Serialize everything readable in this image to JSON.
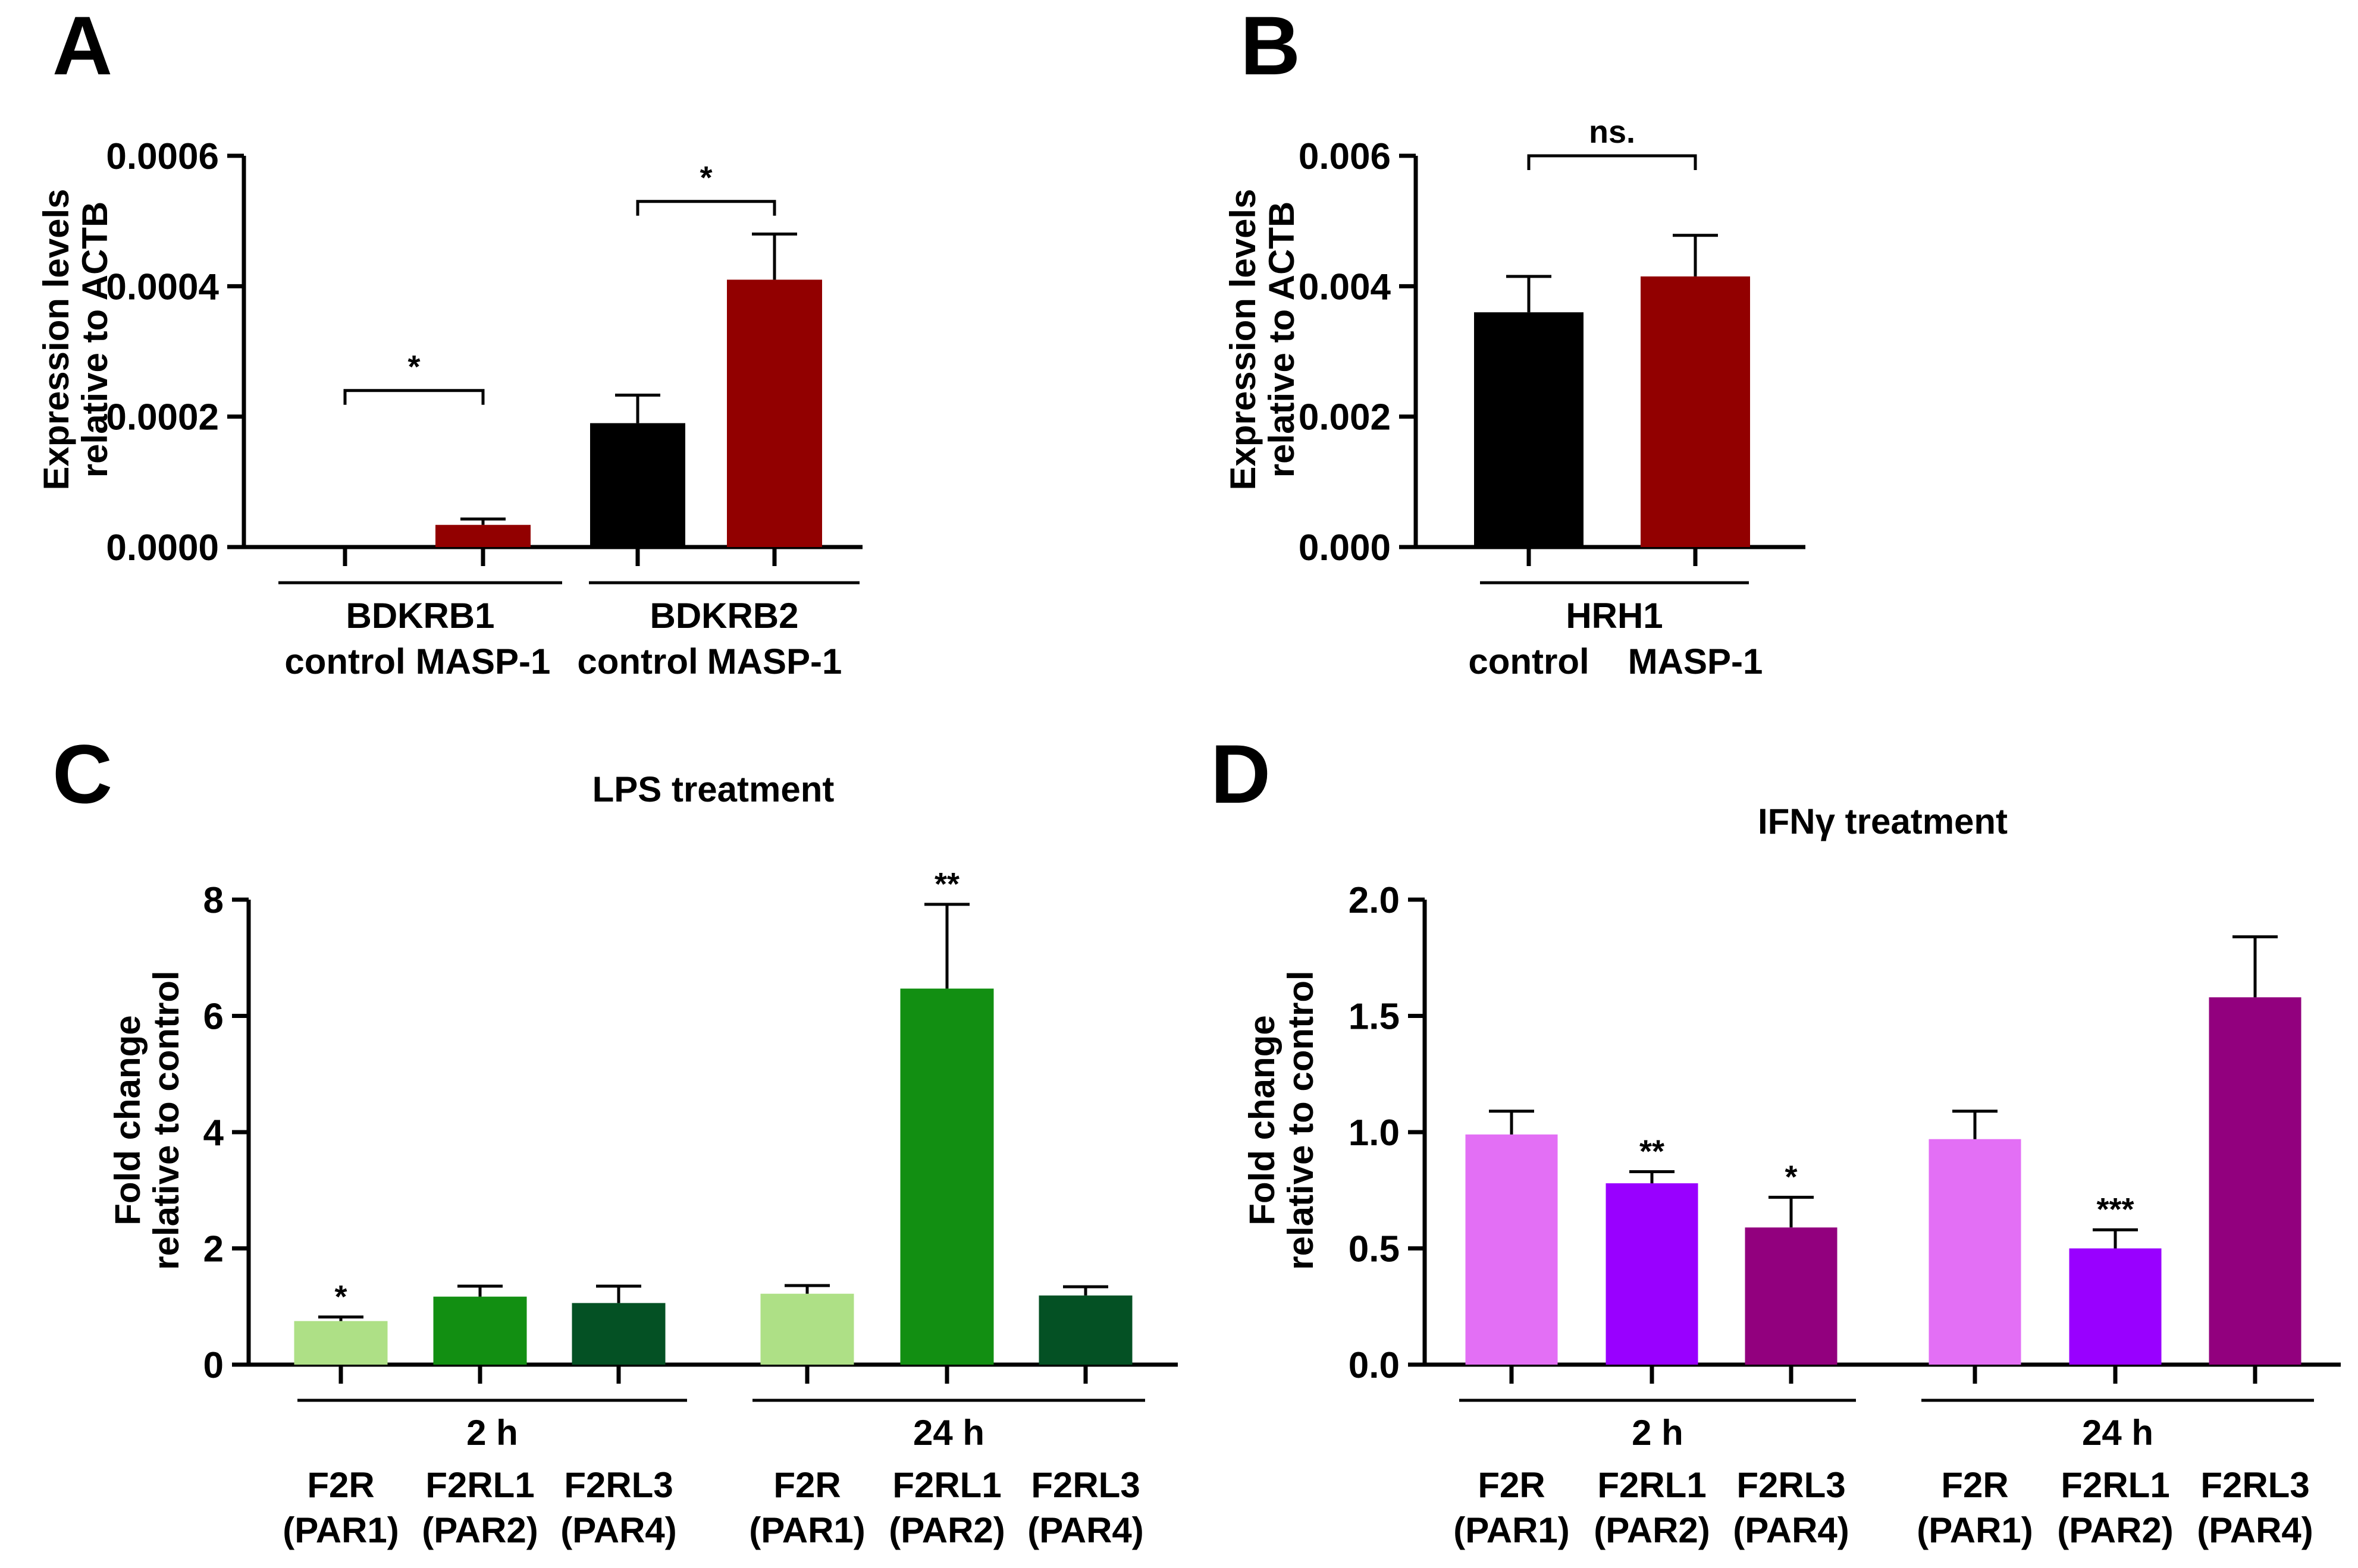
{
  "chart_data": [
    {
      "panel": "A",
      "type": "bar",
      "ylabel": [
        "Expression levels",
        "relative to ACTB"
      ],
      "ylim": [
        0,
        0.0006
      ],
      "yticks": [
        0,
        0.0002,
        0.0004,
        0.0006
      ],
      "ytick_labels": [
        "0.0000",
        "0.0002",
        "0.0004",
        "0.0006"
      ],
      "groups": [
        "BDKRB1",
        "BDKRB2"
      ],
      "categories": [
        "control",
        "MASP-1",
        "control",
        "MASP-1"
      ],
      "values": [
        0.0,
        3.4e-05,
        0.00019,
        0.00041
      ],
      "errors": [
        0.0,
        9e-06,
        4.3e-05,
        7e-05
      ],
      "colors": [
        "#000000",
        "#920000",
        "#000000",
        "#920000"
      ],
      "significance": [
        {
          "label": "*",
          "from": 0,
          "to": 1,
          "y": 0.00024
        },
        {
          "label": "*",
          "from": 2,
          "to": 3,
          "y": 0.00053
        }
      ]
    },
    {
      "panel": "B",
      "type": "bar",
      "ylabel": [
        "Expression levels",
        "relative to ACTB"
      ],
      "ylim": [
        0,
        0.006
      ],
      "yticks": [
        0,
        0.002,
        0.004,
        0.006
      ],
      "ytick_labels": [
        "0.000",
        "0.002",
        "0.004",
        "0.006"
      ],
      "groups": [
        "HRH1"
      ],
      "categories": [
        "control",
        "MASP-1"
      ],
      "values": [
        0.0036,
        0.00415
      ],
      "errors": [
        0.00055,
        0.00063
      ],
      "colors": [
        "#000000",
        "#920000"
      ],
      "significance": [
        {
          "label": "ns.",
          "from": 0,
          "to": 1,
          "y": 0.006
        }
      ]
    },
    {
      "panel": "C",
      "type": "bar",
      "title": "LPS treatment",
      "ylabel": [
        "Fold change",
        "relative to control"
      ],
      "ylim": [
        0,
        8
      ],
      "yticks": [
        0,
        2,
        4,
        6,
        8
      ],
      "ytick_labels": [
        "0",
        "2",
        "4",
        "6",
        "8"
      ],
      "groups": [
        "2 h",
        "24 h"
      ],
      "categories": [
        [
          "F2R",
          "(PAR1)"
        ],
        [
          "F2RL1",
          "(PAR2)"
        ],
        [
          "F2RL3",
          "(PAR4)"
        ],
        [
          "F2R",
          "(PAR1)"
        ],
        [
          "F2RL1",
          "(PAR2)"
        ],
        [
          "F2RL3",
          "(PAR4)"
        ]
      ],
      "values": [
        0.75,
        1.17,
        1.06,
        1.22,
        6.47,
        1.19
      ],
      "errors": [
        0.07,
        0.18,
        0.29,
        0.14,
        1.45,
        0.15
      ],
      "colors": [
        "#aee086",
        "#128f12",
        "#045124",
        "#aee086",
        "#128f12",
        "#045124"
      ],
      "bar_stars": [
        "*",
        "",
        "",
        "",
        "**",
        ""
      ]
    },
    {
      "panel": "D",
      "type": "bar",
      "title": "IFNγ treatment",
      "ylabel": [
        "Fold change",
        "relative to control"
      ],
      "ylim": [
        0,
        2.0
      ],
      "yticks": [
        0,
        0.5,
        1.0,
        1.5,
        2.0
      ],
      "ytick_labels": [
        "0.0",
        "0.5",
        "1.0",
        "1.5",
        "2.0"
      ],
      "groups": [
        "2 h",
        "24 h"
      ],
      "categories": [
        [
          "F2R",
          "(PAR1)"
        ],
        [
          "F2RL1",
          "(PAR2)"
        ],
        [
          "F2RL3",
          "(PAR4)"
        ],
        [
          "F2R",
          "(PAR1)"
        ],
        [
          "F2RL1",
          "(PAR2)"
        ],
        [
          "F2RL3",
          "(PAR4)"
        ]
      ],
      "values": [
        0.99,
        0.78,
        0.59,
        0.97,
        0.5,
        1.58
      ],
      "errors": [
        0.1,
        0.05,
        0.13,
        0.12,
        0.08,
        0.26
      ],
      "colors": [
        "#e36ff5",
        "#9900ff",
        "#92007e",
        "#e36ff5",
        "#9900ff",
        "#92007e"
      ],
      "bar_stars": [
        "",
        "**",
        "*",
        "",
        "***",
        ""
      ]
    }
  ]
}
